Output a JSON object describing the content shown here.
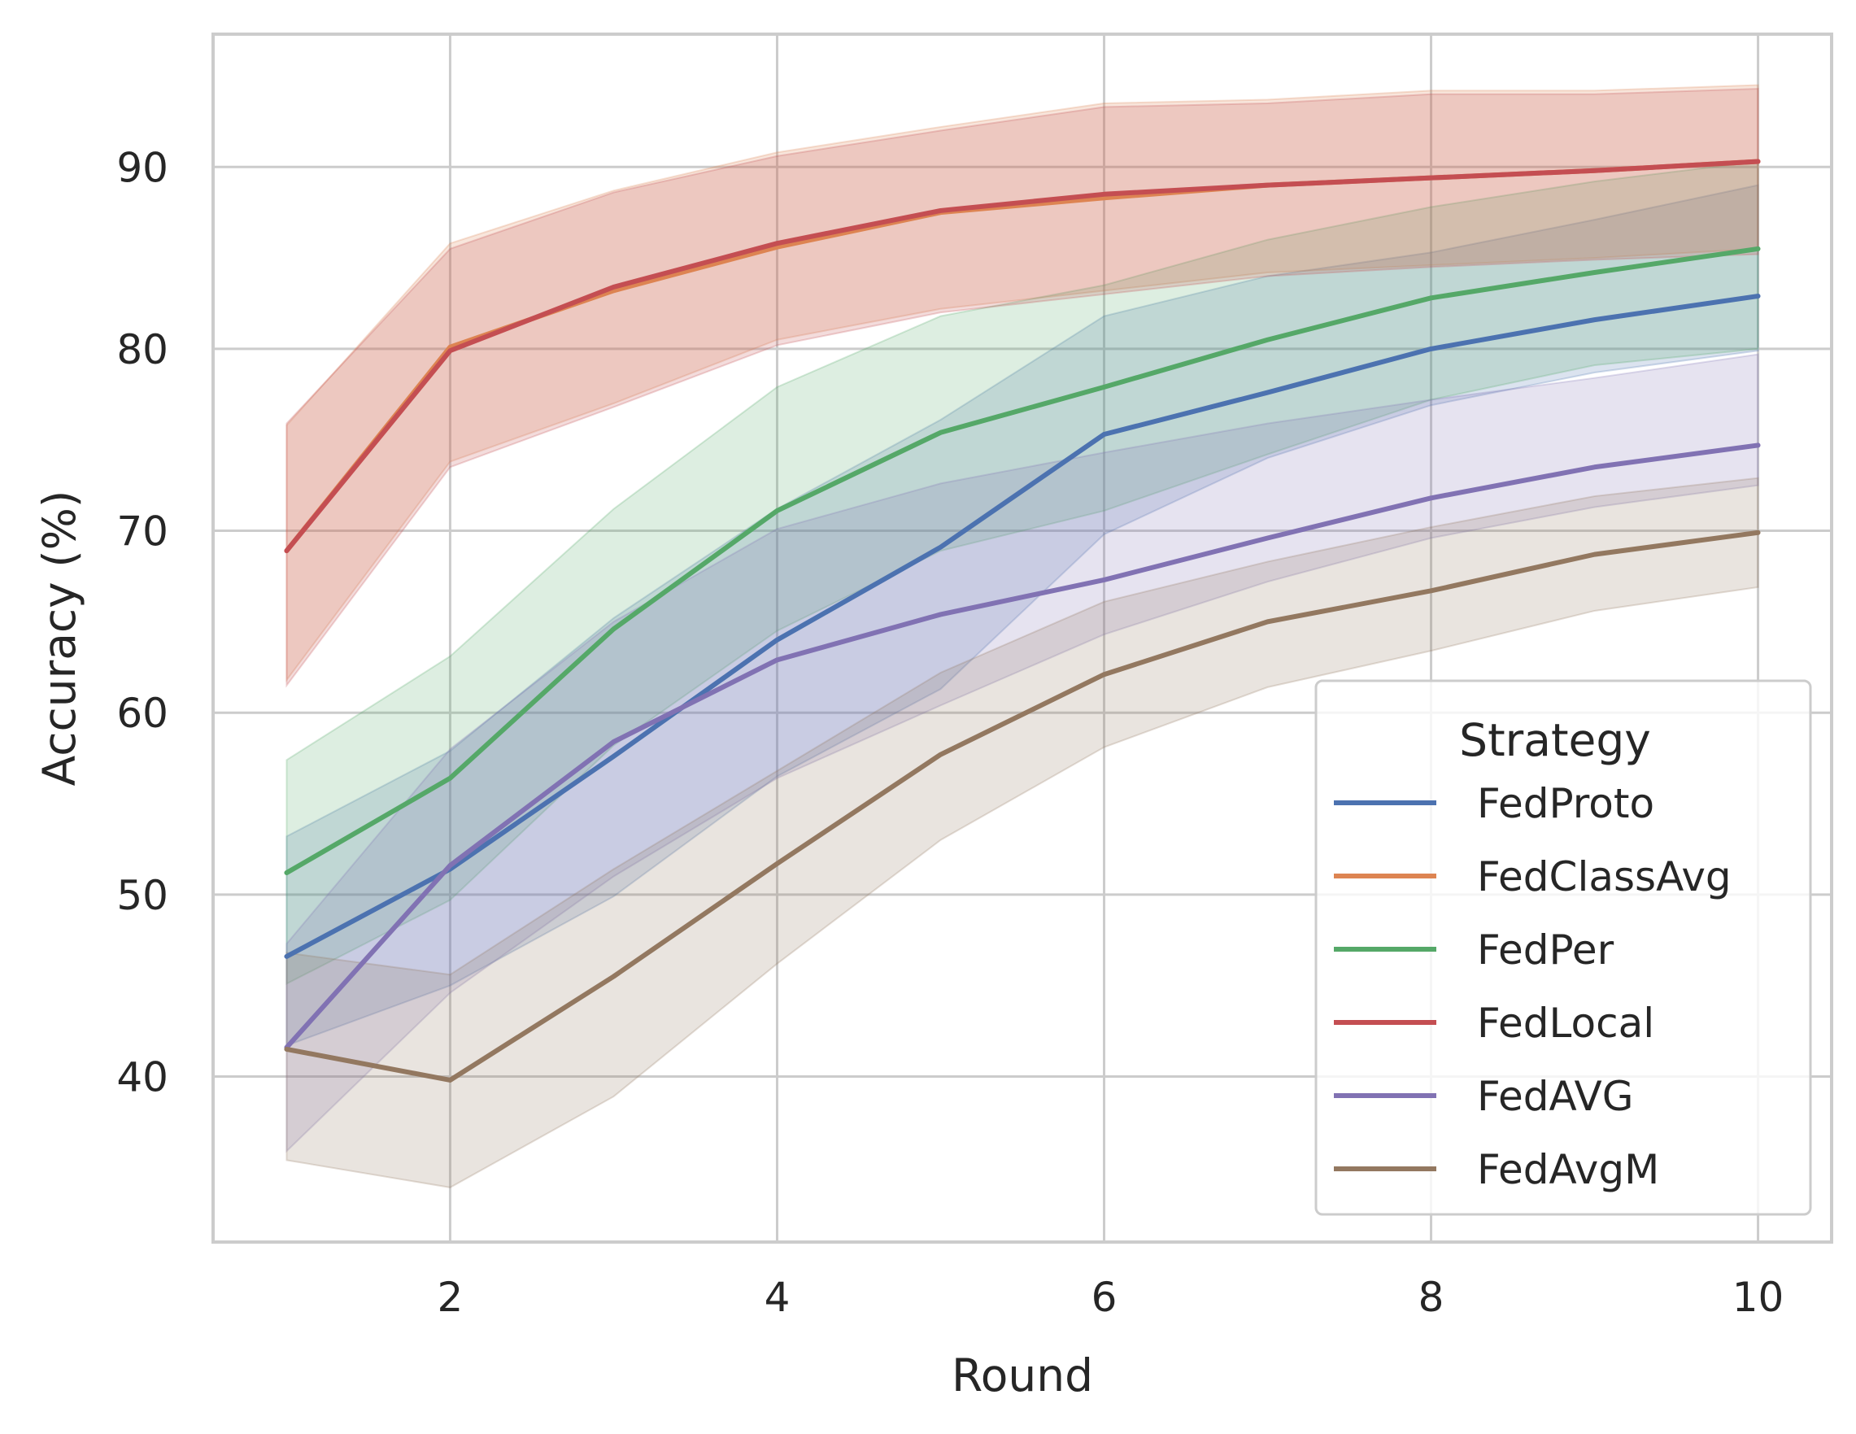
{
  "chart_data": {
    "type": "line",
    "title": "",
    "xlabel": "Round",
    "ylabel": "Accuracy (%)",
    "x": [
      1,
      2,
      3,
      4,
      5,
      6,
      7,
      8,
      9,
      10
    ],
    "xlim": [
      0.55,
      10.45
    ],
    "ylim": [
      30.9,
      97.3
    ],
    "xticks": [
      2,
      4,
      6,
      8,
      10
    ],
    "yticks": [
      40,
      50,
      60,
      70,
      80,
      90
    ],
    "grid": true,
    "confidence_bands": true,
    "legend": {
      "title": "Strategy",
      "placement": "lower-right"
    },
    "series": [
      {
        "name": "FedProto",
        "color": "#4c72b0",
        "values": [
          46.6,
          51.4,
          57.6,
          64.0,
          69.1,
          75.3,
          77.6,
          80.0,
          81.6,
          82.9
        ],
        "lower": [
          41.7,
          45.0,
          49.9,
          56.5,
          61.3,
          69.8,
          74.0,
          76.9,
          78.7,
          79.9
        ],
        "upper": [
          53.2,
          57.9,
          65.2,
          71.2,
          76.1,
          81.8,
          84.0,
          85.3,
          87.1,
          89.0
        ]
      },
      {
        "name": "FedClassAvg",
        "color": "#dd8452",
        "values": [
          68.9,
          80.1,
          83.2,
          85.6,
          87.5,
          88.3,
          89.0,
          89.4,
          89.8,
          90.3
        ],
        "lower": [
          61.8,
          73.8,
          77.0,
          80.5,
          82.2,
          83.2,
          84.2,
          84.6,
          85.0,
          85.5
        ],
        "upper": [
          75.8,
          85.8,
          88.7,
          90.8,
          92.2,
          93.5,
          93.7,
          94.2,
          94.2,
          94.5
        ]
      },
      {
        "name": "FedPer",
        "color": "#55a868",
        "values": [
          51.2,
          56.4,
          64.6,
          71.1,
          75.4,
          77.9,
          80.5,
          82.8,
          84.2,
          85.5
        ],
        "lower": [
          45.1,
          49.7,
          58.2,
          64.5,
          68.9,
          71.1,
          74.2,
          77.2,
          79.1,
          80.0
        ],
        "upper": [
          57.4,
          63.1,
          71.2,
          77.9,
          81.8,
          83.5,
          86.0,
          87.8,
          89.2,
          90.3
        ]
      },
      {
        "name": "FedLocal",
        "color": "#c44e52",
        "values": [
          68.9,
          79.9,
          83.4,
          85.8,
          87.6,
          88.5,
          89.0,
          89.4,
          89.8,
          90.3
        ],
        "lower": [
          61.5,
          73.5,
          76.8,
          80.2,
          82.0,
          83.0,
          84.0,
          84.5,
          84.9,
          85.2
        ],
        "upper": [
          75.9,
          85.5,
          88.6,
          90.6,
          92.0,
          93.3,
          93.5,
          94.0,
          94.0,
          94.3
        ]
      },
      {
        "name": "FedAVG",
        "color": "#8172b3",
        "values": [
          41.6,
          51.6,
          58.4,
          62.9,
          65.4,
          67.3,
          69.6,
          71.8,
          73.5,
          74.7
        ],
        "lower": [
          35.9,
          44.6,
          51.0,
          56.4,
          60.4,
          64.3,
          67.2,
          69.6,
          71.3,
          72.5
        ],
        "upper": [
          47.3,
          58.0,
          65.0,
          70.1,
          72.6,
          74.3,
          75.9,
          77.2,
          78.4,
          79.7
        ]
      },
      {
        "name": "FedAvgM",
        "color": "#937860",
        "values": [
          41.5,
          39.8,
          45.5,
          51.7,
          57.7,
          62.1,
          65.0,
          66.7,
          68.7,
          69.9
        ],
        "lower": [
          35.4,
          33.9,
          38.9,
          46.2,
          53.0,
          58.1,
          61.4,
          63.4,
          65.6,
          66.9
        ],
        "upper": [
          46.8,
          45.6,
          51.4,
          56.8,
          62.2,
          66.1,
          68.3,
          70.2,
          71.9,
          72.9
        ]
      }
    ]
  }
}
